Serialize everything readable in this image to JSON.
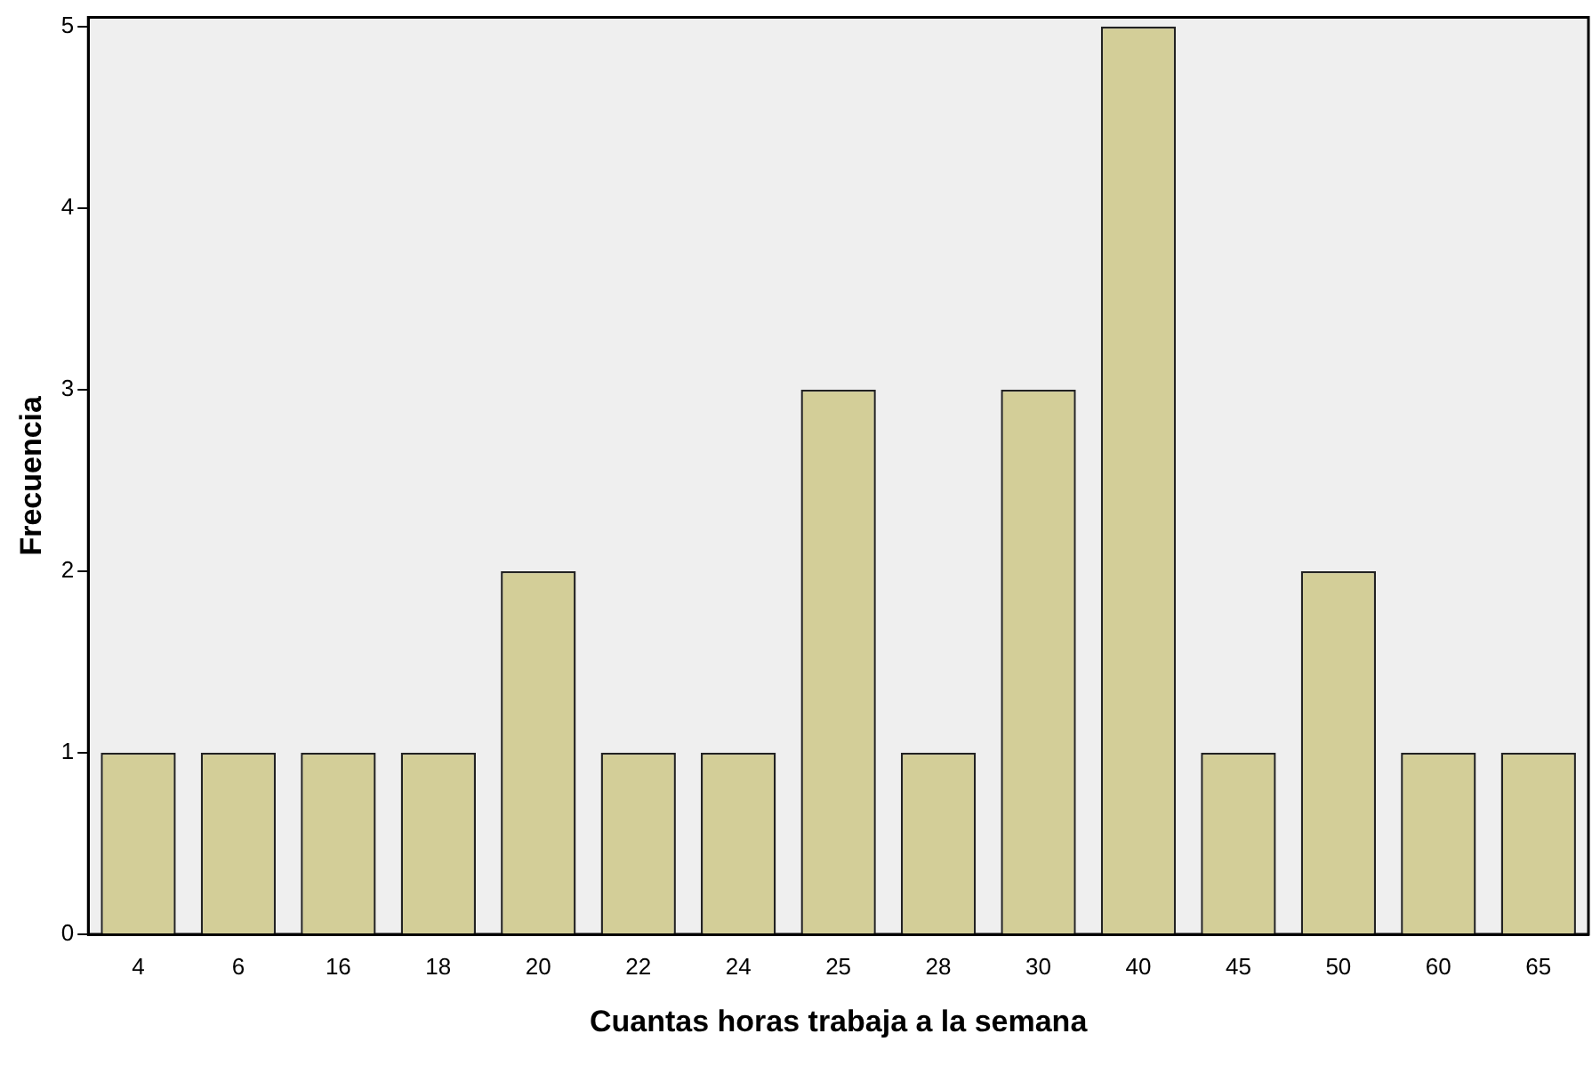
{
  "chart_data": {
    "type": "bar",
    "xlabel": "Cuantas horas trabaja a la semana",
    "ylabel": "Frecuencia",
    "categories": [
      "4",
      "6",
      "16",
      "18",
      "20",
      "22",
      "24",
      "25",
      "28",
      "30",
      "40",
      "45",
      "50",
      "60",
      "65"
    ],
    "values": [
      1,
      1,
      1,
      1,
      2,
      1,
      1,
      3,
      1,
      3,
      5,
      1,
      2,
      1,
      1
    ],
    "color": "#d3ce98",
    "ylim": [
      0,
      5.05
    ],
    "yticks": [
      0,
      1,
      2,
      3,
      4,
      5
    ],
    "grid": false,
    "legend": false
  }
}
